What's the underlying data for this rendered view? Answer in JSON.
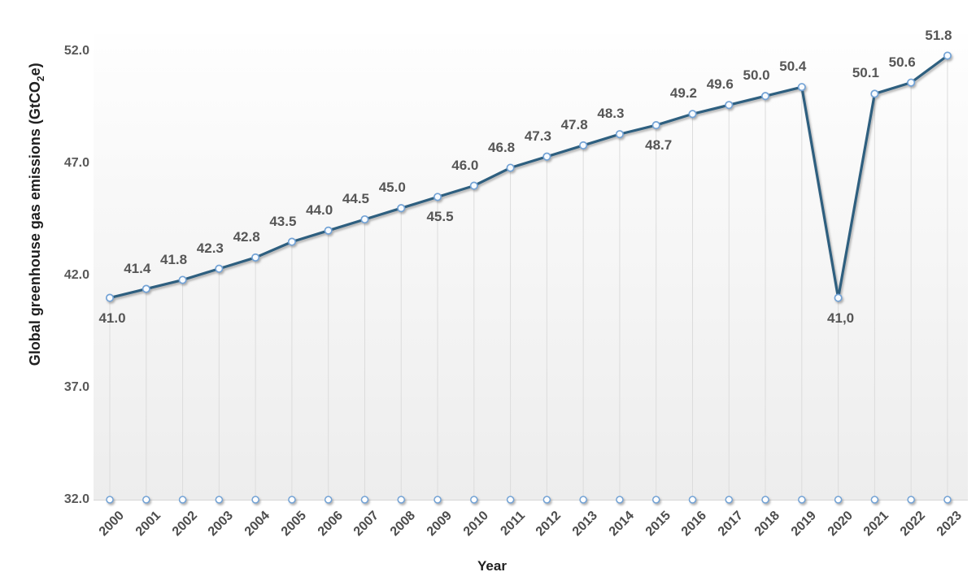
{
  "chart_data": {
    "type": "line",
    "title": "",
    "xlabel": "Year",
    "ylabel": {
      "pre": "Global greenhouse gas emissions (GtCO",
      "sub": "2",
      "post": "e)"
    },
    "x": [
      "2000",
      "2001",
      "2002",
      "2003",
      "2004",
      "2005",
      "2006",
      "2007",
      "2008",
      "2009",
      "2010",
      "2011",
      "2012",
      "2013",
      "2014",
      "2015",
      "2016",
      "2017",
      "2018",
      "2019",
      "2020",
      "2021",
      "2022",
      "2023"
    ],
    "values": [
      41.0,
      41.4,
      41.8,
      42.3,
      42.8,
      43.5,
      44.0,
      44.5,
      45.0,
      45.5,
      46.0,
      46.8,
      47.3,
      47.8,
      48.3,
      48.7,
      49.2,
      49.6,
      50.0,
      50.4,
      41.0,
      50.1,
      50.6,
      51.8
    ],
    "point_labels": [
      "41.0",
      "41.4",
      "41.8",
      "42.3",
      "42.8",
      "43.5",
      "44.0",
      "44.5",
      "45.0",
      "45.5",
      "46.0",
      "46.8",
      "47.3",
      "47.8",
      "48.3",
      "48.7",
      "49.2",
      "49.6",
      "50.0",
      "50.4",
      "41,0",
      "50.1",
      "50.6",
      "51.8"
    ],
    "labels_below_indices": [
      0,
      9,
      15,
      20
    ],
    "yticks": {
      "labels": [
        "52.0",
        "47.0",
        "42.0",
        "37.0",
        "32.0"
      ],
      "values": [
        52,
        47,
        42,
        37,
        32
      ]
    },
    "ylim": [
      32,
      52.7
    ],
    "grid": "vertical-drop-lines-only",
    "legend": "none",
    "colors": {
      "line": "#2d5e7f",
      "marker_stroke": "#72a2d5",
      "marker_fill": "#f8fbfe",
      "baseline_marker_stroke": "#72a2d5",
      "baseline_marker_fill": "#ffffff",
      "drop_line": "#dcdcdc",
      "data_label": "#565656",
      "tick_label": "#595959",
      "axis_title": "#1f1f1f"
    }
  }
}
